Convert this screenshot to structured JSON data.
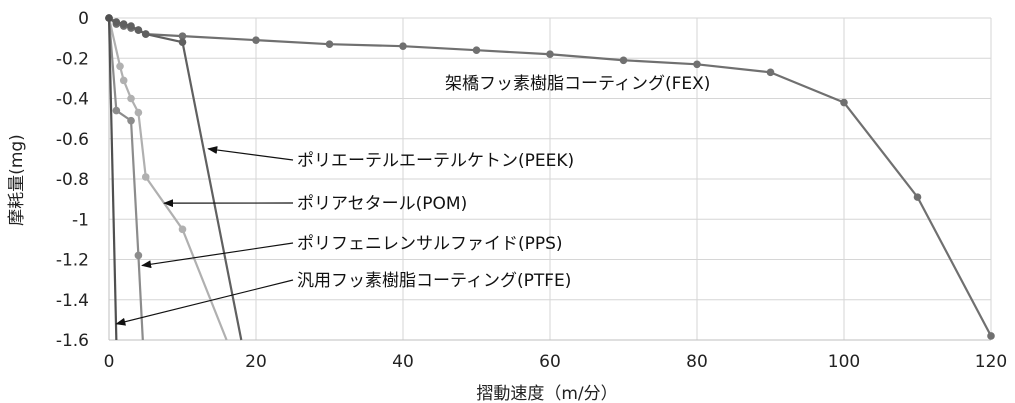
{
  "chart_data": {
    "type": "scatter",
    "title": "",
    "xlabel": "摺動速度（m/分）",
    "ylabel": "摩耗量(mg)",
    "xlim": [
      0,
      120
    ],
    "ylim": [
      -1.6,
      0
    ],
    "xticks": [
      "0",
      "20",
      "40",
      "60",
      "80",
      "100",
      "120"
    ],
    "yticks": [
      "0",
      "-0.2",
      "-0.4",
      "-0.6",
      "-0.8",
      "-1",
      "-1.2",
      "-1.4",
      "-1.6"
    ],
    "grid": true,
    "legend": "none",
    "series": [
      {
        "color": "#707070",
        "label": "架橋フッ素樹脂コーティング(FEX)",
        "x": [
          0,
          1,
          2,
          3,
          4,
          5,
          10,
          20,
          30,
          40,
          50,
          60,
          70,
          80,
          90,
          100,
          110,
          120
        ],
        "y": [
          0,
          -0.03,
          -0.04,
          -0.05,
          -0.06,
          -0.08,
          -0.09,
          -0.11,
          -0.13,
          -0.14,
          -0.16,
          -0.18,
          -0.21,
          -0.23,
          -0.27,
          -0.42,
          -0.89,
          -1.58
        ]
      },
      {
        "color": "#606060",
        "label": "ポリエーテルエーテルケトン(PEEK)",
        "x": [
          0,
          1,
          2,
          3,
          4,
          5,
          10,
          18
        ],
        "y": [
          0,
          -0.02,
          -0.03,
          -0.04,
          -0.06,
          -0.08,
          -0.12,
          -1.6
        ]
      },
      {
        "color": "#b0b0b0",
        "label": "ポリアセタール(POM)",
        "x": [
          0,
          1.5,
          2,
          3,
          4,
          5,
          10,
          16
        ],
        "y": [
          0,
          -0.24,
          -0.31,
          -0.4,
          -0.47,
          -0.79,
          -1.05,
          -1.6
        ]
      },
      {
        "color": "#8c8c8c",
        "label": "ポリフェニレンサルファイド(PPS)",
        "x": [
          0,
          1,
          3,
          4,
          4.6
        ],
        "y": [
          0,
          -0.46,
          -0.51,
          -1.18,
          -1.6
        ]
      },
      {
        "color": "#505050",
        "label": "汎用フッ素樹脂コーティング(PTFE)",
        "x": [
          0,
          1
        ],
        "y": [
          0,
          -1.6
        ]
      }
    ],
    "annotations": [
      {
        "text": "架橋フッ素樹脂コーティング(FEX)"
      },
      {
        "text": "ポリエーテルエーテルケトン(PEEK)",
        "arrow_to": [
          13.5,
          -0.65
        ]
      },
      {
        "text": "ポリアセタール(POM)",
        "arrow_to": [
          7.5,
          -0.92
        ]
      },
      {
        "text": "ポリフェニレンサルファイド(PPS)",
        "arrow_to": [
          4.5,
          -1.23
        ]
      },
      {
        "text": "汎用フッ素樹脂コーティング(PTFE)",
        "arrow_to": [
          1.0,
          -1.52
        ]
      }
    ]
  }
}
